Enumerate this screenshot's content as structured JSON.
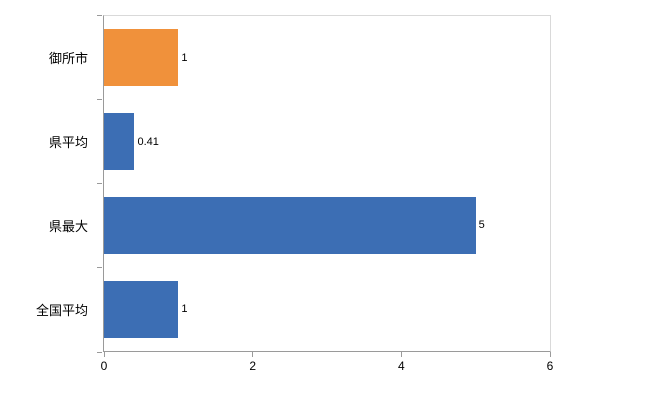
{
  "chart_data": {
    "type": "bar",
    "orientation": "horizontal",
    "title": "",
    "xlabel": "",
    "ylabel": "",
    "categories": [
      "御所市",
      "県平均",
      "県最大",
      "全国平均"
    ],
    "values": [
      1,
      0.41,
      5,
      1
    ],
    "value_labels": [
      "1",
      "0.41",
      "5",
      "1"
    ],
    "colors": [
      "#f0913b",
      "#3c6eb4",
      "#3c6eb4",
      "#3c6eb4"
    ],
    "xlim": [
      0,
      6
    ],
    "x_ticks": [
      0,
      2,
      4,
      6
    ],
    "x_tick_labels": [
      "0",
      "2",
      "4",
      "6"
    ],
    "grid": false,
    "legend": "none",
    "accent_orange": "#f0913b",
    "accent_blue": "#3c6eb4",
    "axis_color": "#9a9a9a",
    "border_color": "#d9d9d9"
  }
}
